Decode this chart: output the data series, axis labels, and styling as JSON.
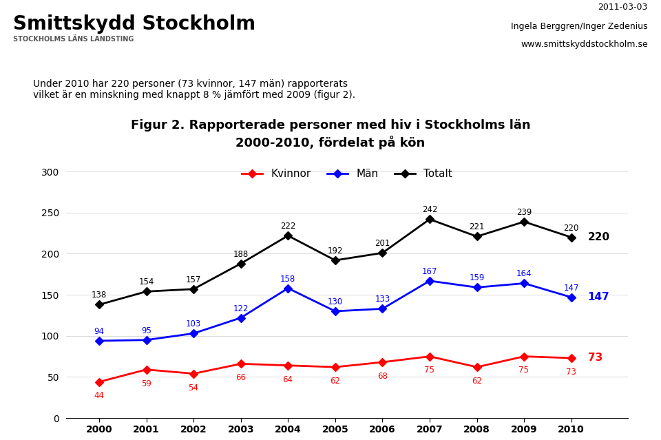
{
  "years": [
    2000,
    2001,
    2002,
    2003,
    2004,
    2005,
    2006,
    2007,
    2008,
    2009,
    2010
  ],
  "kvinnor": [
    44,
    59,
    54,
    66,
    64,
    62,
    68,
    75,
    62,
    75,
    73
  ],
  "man": [
    94,
    95,
    103,
    122,
    158,
    130,
    133,
    167,
    159,
    164,
    147
  ],
  "totalt": [
    138,
    154,
    157,
    188,
    222,
    192,
    201,
    242,
    221,
    239,
    220
  ],
  "kvinnor_color": "#ff0000",
  "man_color": "#0000ff",
  "totalt_color": "#000000",
  "title_line1": "Figur 2. Rapporterade personer med hiv i Stockholms län",
  "title_line2": "2000-2010, fördelat på kön",
  "legend_kvinnor": "Kvinnor",
  "legend_man": "Män",
  "legend_totalt": "Totalt",
  "ylim": [
    0,
    300
  ],
  "yticks": [
    0,
    50,
    100,
    150,
    200,
    250,
    300
  ],
  "bg_color": "#ffffff",
  "header_bg": "#e8e0d0",
  "body_text_line1": "Under 2010 har 220 personer (73 kvinnor, 147 män) rapporterats",
  "body_text_line2": "vilket är en minskning med knappt 8 % jämfört med 2009 (figur 2).",
  "header_org": "Smittskydd Stockholm",
  "header_sub": "STOCKHOLMS LÄNS LANDSTING",
  "header_date": "2011-03-03",
  "header_author": "Ingela Berggren/Inger Zedenius",
  "header_url": "www.smittskyddstockholm.se"
}
